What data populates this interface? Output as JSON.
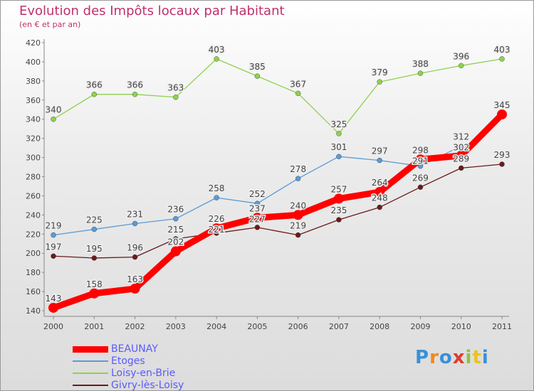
{
  "chart_data": {
    "type": "line",
    "title": "Evolution des Impôts locaux par Habitant",
    "subtitle": "(en € et par an)",
    "x": [
      "2000",
      "2001",
      "2002",
      "2003",
      "2004",
      "2005",
      "2006",
      "2007",
      "2008",
      "2009",
      "2010",
      "2011"
    ],
    "ylim": [
      140,
      420
    ],
    "yticks": [
      140,
      160,
      180,
      200,
      220,
      240,
      260,
      280,
      300,
      320,
      340,
      360,
      380,
      400,
      420
    ],
    "grid": false,
    "legend_placement": "bottom-left",
    "series": [
      {
        "name": "BEAUNAY",
        "color": "#ff0000",
        "values": [
          143,
          158,
          163,
          202,
          226,
          237,
          240,
          257,
          264,
          298,
          302,
          345
        ]
      },
      {
        "name": "Etoges",
        "color": "#5b9bd5",
        "values": [
          219,
          225,
          231,
          236,
          258,
          252,
          278,
          301,
          297,
          291,
          312,
          null
        ]
      },
      {
        "name": "Loisy-en-Brie",
        "color": "#8fd14f",
        "values": [
          340,
          366,
          366,
          363,
          403,
          385,
          367,
          325,
          379,
          388,
          396,
          403
        ]
      },
      {
        "name": "Givry-lès-Loisy",
        "color": "#6b1a1a",
        "values": [
          197,
          195,
          196,
          215,
          221,
          227,
          219,
          235,
          248,
          269,
          289,
          293
        ]
      }
    ]
  },
  "logo": {
    "text": "Proxiti"
  }
}
